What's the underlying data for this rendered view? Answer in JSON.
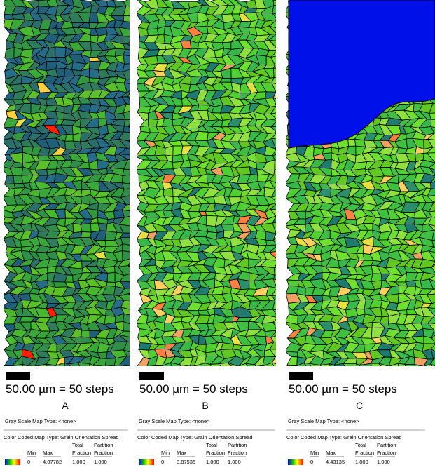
{
  "panels": [
    {
      "label": "A",
      "scale_bar": "50.00 µm = 50 steps",
      "gray_scale": "Gray Scale Map Type: <none>",
      "color_coded": "Color Coded Map Type: Grain Orientation Spread",
      "headers": {
        "min": "Min",
        "max": "Max",
        "total": [
          "Total",
          "Fraction"
        ],
        "partition": [
          "Partition",
          "Fraction"
        ]
      },
      "values": {
        "min": "0",
        "max": "4.07782",
        "total": "1.000",
        "partition": "1.000"
      }
    },
    {
      "label": "B",
      "scale_bar": "50.00 µm = 50 steps",
      "gray_scale": "Gray Scale Map Type: <none>",
      "color_coded": "Color Coded Map Type: Grain Orientation Spread",
      "headers": {
        "min": "Min",
        "max": "Max",
        "total": [
          "Total",
          "Fraction"
        ],
        "partition": [
          "Partition",
          "Fraction"
        ]
      },
      "values": {
        "min": "0",
        "max": "3.87535",
        "total": "1.000",
        "partition": "1.000"
      }
    },
    {
      "label": "C",
      "scale_bar": "50.00 µm = 50 steps",
      "gray_scale": "Gray Scale Map Type: <none>",
      "color_coded": "Color Coded Map Type: Grain Orientation Spread",
      "headers": {
        "min": "Min",
        "max": "Max",
        "total": [
          "Total",
          "Fraction"
        ],
        "partition": [
          "Partition",
          "Fraction"
        ]
      },
      "values": {
        "min": "0",
        "max": "4.43135",
        "total": "1.000",
        "partition": "1.000"
      }
    }
  ]
}
